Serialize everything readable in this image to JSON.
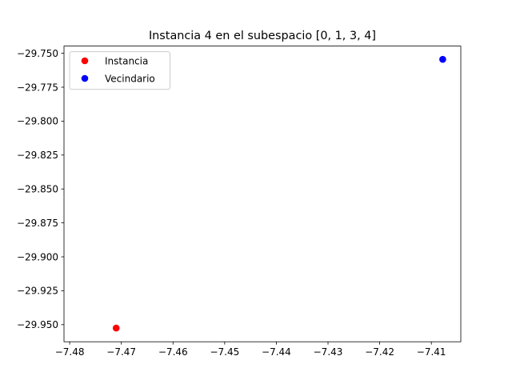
{
  "chart_data": {
    "type": "scatter",
    "title": "Instancia 4 en el subespacio [0, 1, 3, 4]",
    "xlabel": "",
    "ylabel": "",
    "xlim": [
      -7.4811,
      -7.4043
    ],
    "ylim": [
      -29.9626,
      -29.7447
    ],
    "grid": false,
    "legend_position": "upper-left",
    "x_ticks": [
      -7.48,
      -7.47,
      -7.46,
      -7.45,
      -7.44,
      -7.43,
      -7.42,
      -7.41
    ],
    "x_tick_labels": [
      "−7.48",
      "−7.47",
      "−7.46",
      "−7.45",
      "−7.44",
      "−7.43",
      "−7.42",
      "−7.41"
    ],
    "y_ticks": [
      -29.75,
      -29.775,
      -29.8,
      -29.825,
      -29.85,
      -29.875,
      -29.9,
      -29.925,
      -29.95
    ],
    "y_tick_labels": [
      "−29.750",
      "−29.775",
      "−29.800",
      "−29.825",
      "−29.850",
      "−29.875",
      "−29.900",
      "−29.925",
      "−29.950"
    ],
    "series": [
      {
        "name": "Instancia",
        "color": "#ff0000",
        "points": [
          {
            "x": -7.471,
            "y": -29.9525
          }
        ]
      },
      {
        "name": "Vecindario",
        "color": "#0000ff",
        "points": [
          {
            "x": -7.4078,
            "y": -29.7545
          }
        ]
      }
    ]
  }
}
